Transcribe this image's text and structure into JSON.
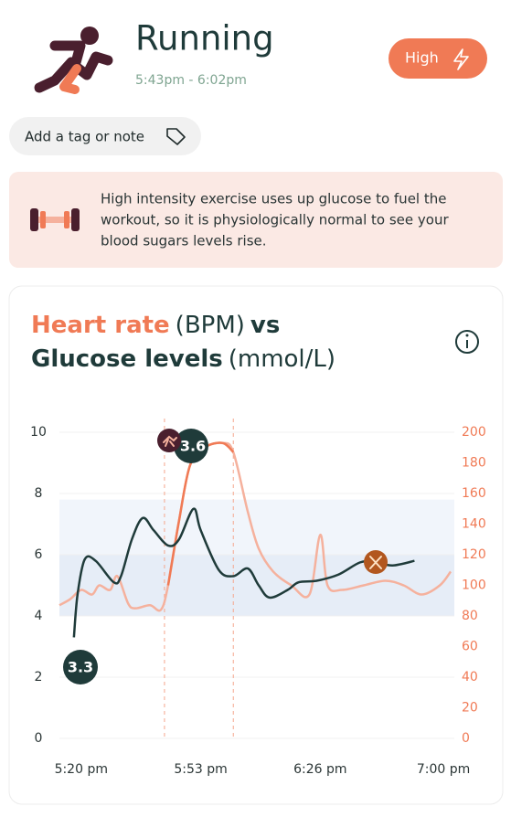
{
  "header": {
    "title": "Running",
    "time_range": "5:43pm - 6:02pm",
    "intensity": "High"
  },
  "tag_button": "Add a tag or note",
  "info_text": [
    "High intensity exercise uses up glucose to fuel the",
    "workout, so it is physiologically normal to see your",
    "blood sugars levels rise."
  ],
  "chart_data": {
    "type": "line",
    "title_parts": [
      {
        "text": "Heart rate",
        "color": "#f07a55",
        "bold": true
      },
      {
        "text": "(BPM)",
        "color": "#1f3b3a",
        "bold": false
      },
      {
        "text": "vs",
        "color": "#1f3b3a",
        "bold": true
      },
      {
        "text": "Glucose levels",
        "color": "#1f3b3a",
        "bold": true
      },
      {
        "text": "(mmol/L)",
        "color": "#1f3b3a",
        "bold": false
      }
    ],
    "xlim": [
      "5:14 pm",
      "7:03 pm"
    ],
    "xticks": [
      "5:20 pm",
      "5:53 pm",
      "6:26 pm",
      "7:00 pm"
    ],
    "ylim": [
      0,
      10
    ],
    "yticks": [
      0,
      2,
      4,
      6,
      8,
      10
    ],
    "y2lim": [
      0,
      200
    ],
    "y2ticks": [
      0,
      20,
      40,
      60,
      80,
      100,
      120,
      140,
      160,
      180,
      200
    ],
    "grid": true,
    "bands": [
      {
        "from": 4,
        "to": 6,
        "color": "#e6edf7"
      },
      {
        "from": 6,
        "to": 7.8,
        "color": "#f1f5fb"
      }
    ],
    "activity_window": [
      "5:43 pm",
      "6:02 pm"
    ],
    "series": [
      {
        "name": "Glucose levels",
        "color": "#1f3b3a",
        "x": [
          "5:18 pm",
          "5:19 pm",
          "5:21 pm",
          "5:24 pm",
          "5:29 pm",
          "5:31 pm",
          "5:34 pm",
          "5:37 pm",
          "5:40 pm",
          "5:44 pm",
          "5:47 pm",
          "5:51 pm",
          "5:53 pm",
          "5:58 pm",
          "6:02 pm",
          "6:06 pm",
          "6:09 pm",
          "6:12 pm",
          "6:17 pm",
          "6:20 pm",
          "6:25 pm",
          "6:31 pm",
          "6:37 pm",
          "6:41 pm",
          "6:46 pm",
          "6:52 pm"
        ],
        "values": [
          3.3,
          4.7,
          5.85,
          5.8,
          5.1,
          5.3,
          6.5,
          7.2,
          6.8,
          6.3,
          6.5,
          7.5,
          6.8,
          5.5,
          5.3,
          5.55,
          5.0,
          4.6,
          4.85,
          5.1,
          5.15,
          5.35,
          5.75,
          5.75,
          5.65,
          5.8
        ]
      },
      {
        "name": "Heart rate",
        "color": "#f5b19d",
        "highlight_color": "#f07a55",
        "axis": "y2",
        "x": [
          "5:14 pm",
          "5:17 pm",
          "5:20 pm",
          "5:23 pm",
          "5:25 pm",
          "5:28 pm",
          "5:30 pm",
          "5:33 pm",
          "5:35 pm",
          "5:39 pm",
          "5:42 pm",
          "5:44 pm",
          "5:47 pm",
          "5:50 pm",
          "5:54 pm",
          "5:59 pm",
          "6:02 pm",
          "6:06 pm",
          "6:09 pm",
          "6:13 pm",
          "6:18 pm",
          "6:23 pm",
          "6:26 pm",
          "6:28 pm",
          "6:32 pm",
          "6:38 pm",
          "6:44 pm",
          "6:49 pm",
          "6:54 pm",
          "6:59 pm",
          "7:02 pm"
        ],
        "values": [
          87,
          91,
          97,
          94,
          100,
          97,
          106,
          88,
          85,
          87,
          84,
          100,
          142,
          178,
          190,
          193,
          187,
          148,
          124,
          109,
          100,
          94,
          133,
          100,
          97,
          100,
          103,
          100,
          94,
          100,
          109
        ]
      }
    ],
    "annotations": [
      "3.3",
      "3.6"
    ]
  }
}
